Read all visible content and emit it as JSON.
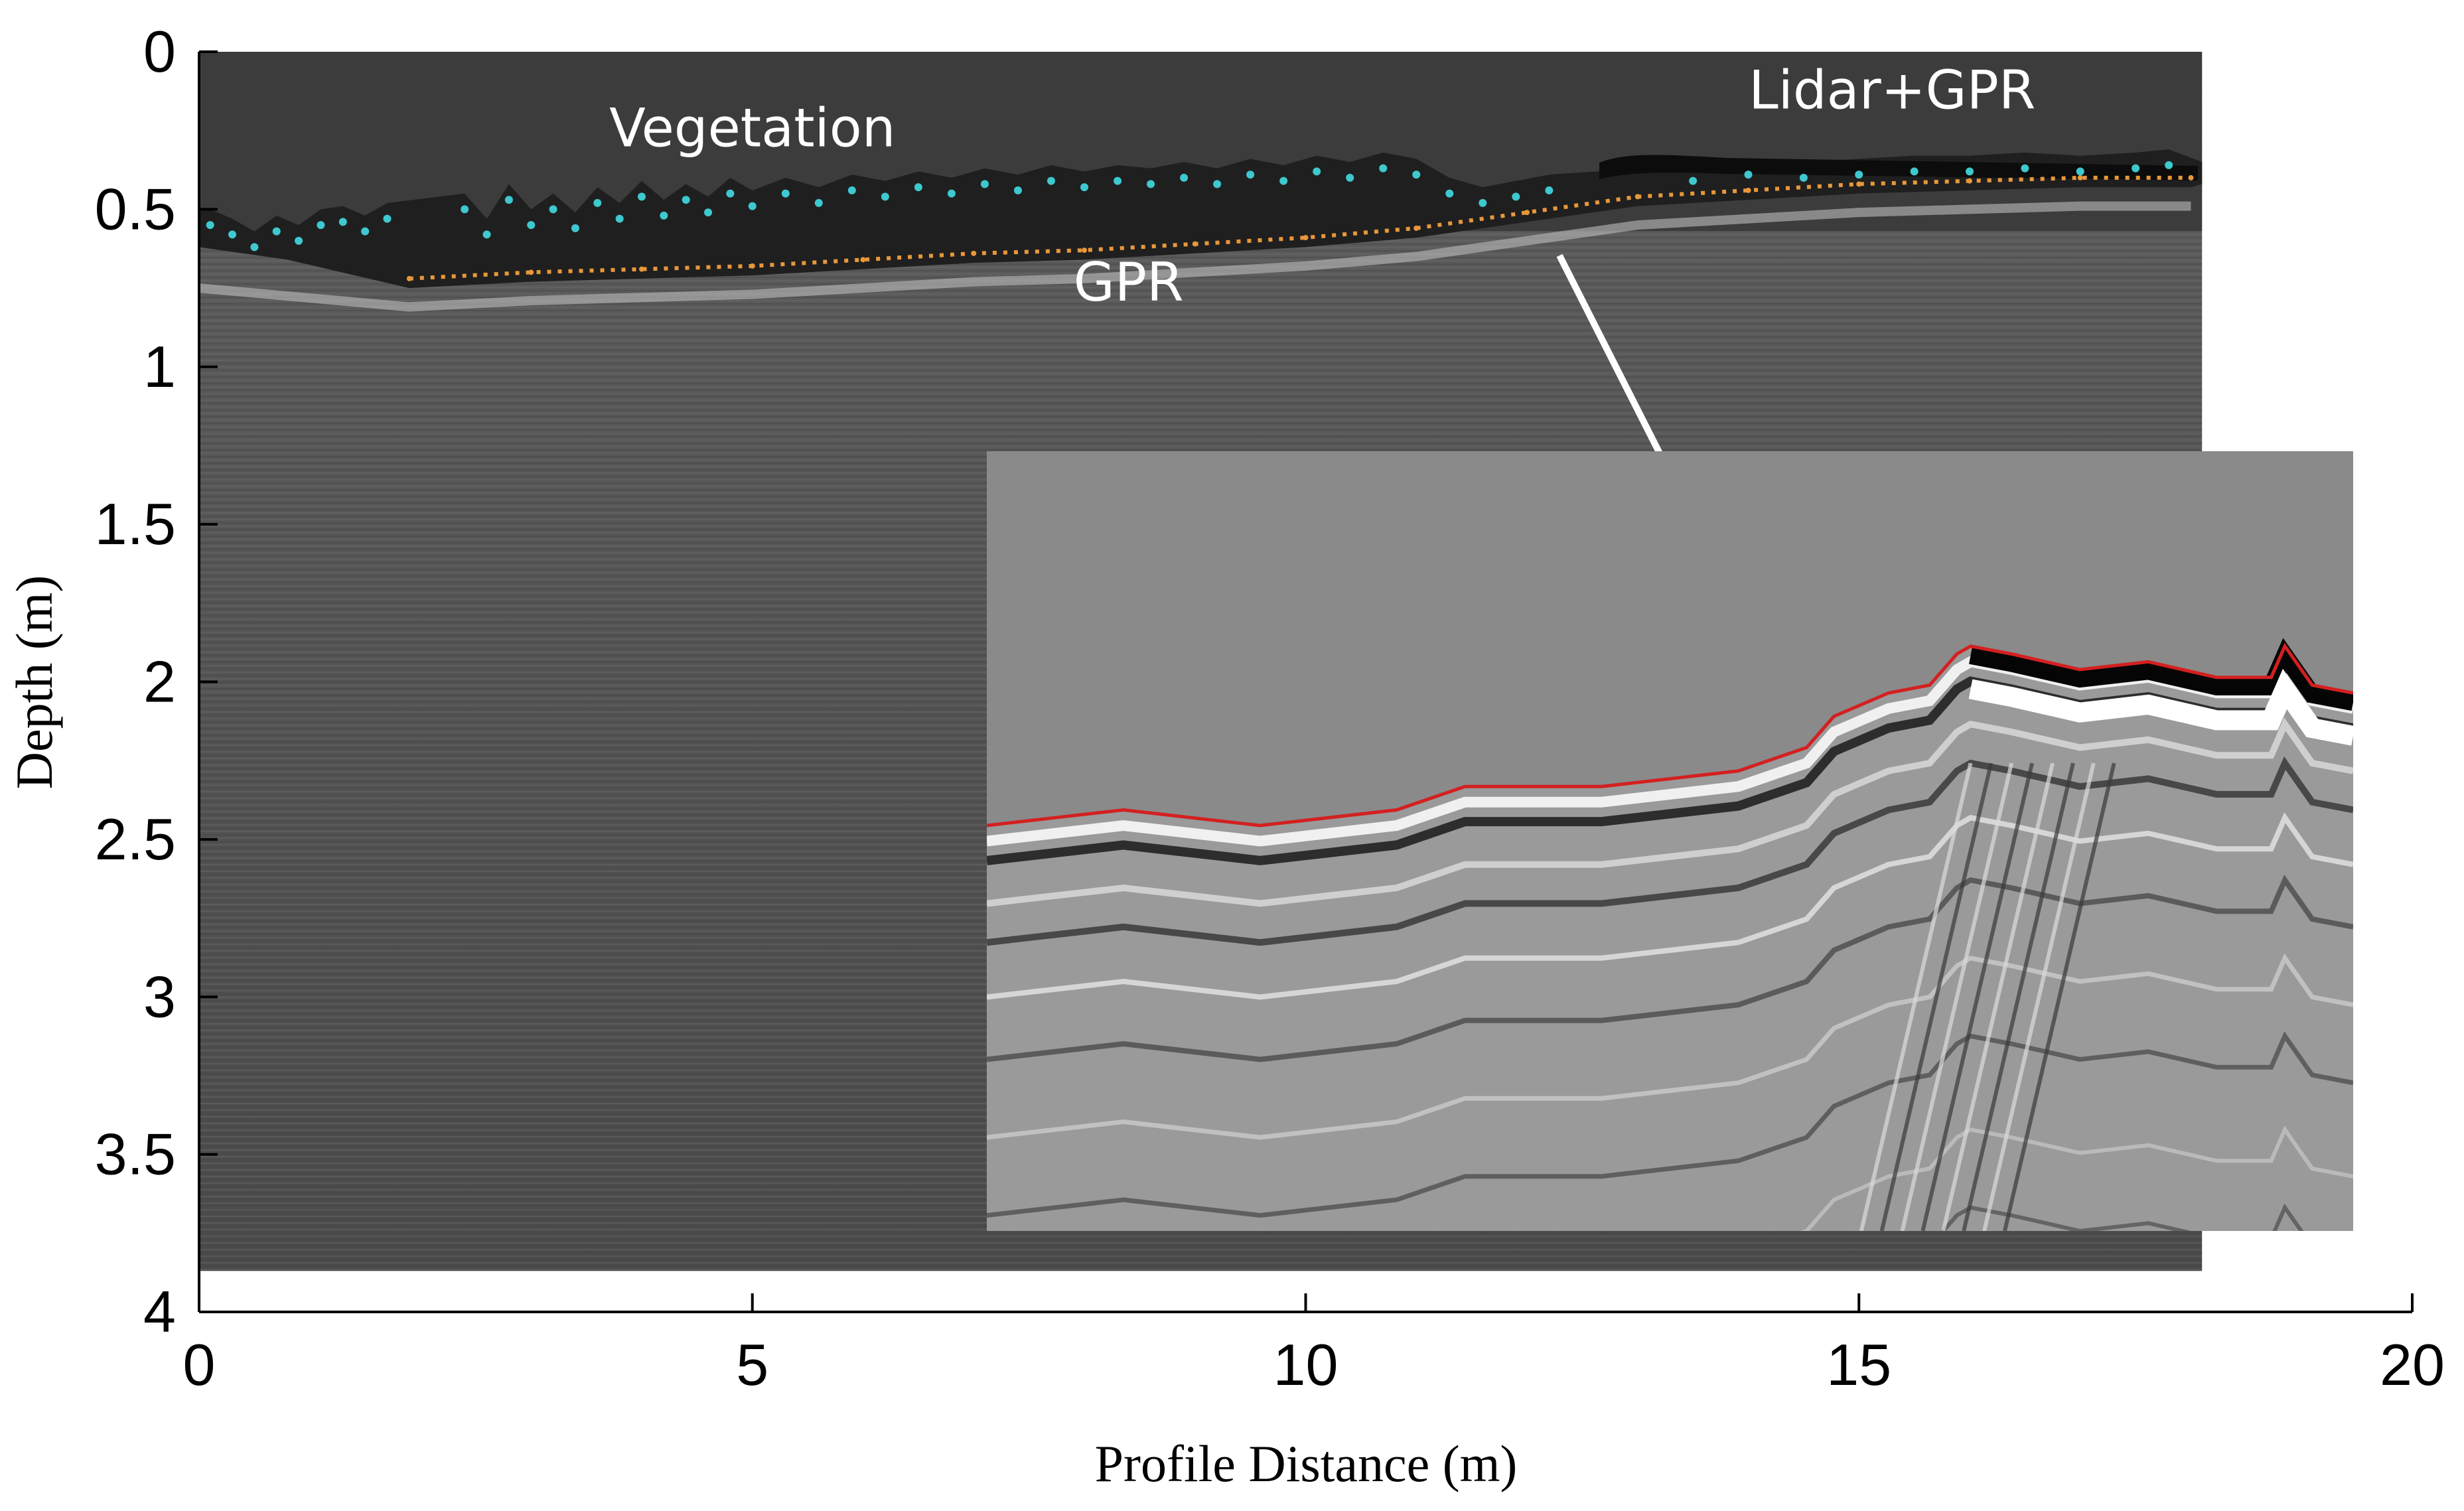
{
  "chart_data": {
    "type": "heatmap",
    "xlabel": "Profile Distance (m)",
    "ylabel": "Depth (m)",
    "xlim": [
      0,
      20
    ],
    "ylim": [
      0,
      4
    ],
    "x_ticks": [
      "0",
      "5",
      "10",
      "15",
      "20"
    ],
    "y_ticks": [
      "0",
      "0.5",
      "1",
      "1.5",
      "2",
      "2.5",
      "3",
      "3.5",
      "4"
    ],
    "data_extent_x": [
      0,
      18.1
    ],
    "data_extent_y": [
      0,
      3.87
    ],
    "colormap": "grayscale",
    "annotations": [
      {
        "text": "Vegetation",
        "x": 5.0,
        "y": 0.3
      },
      {
        "text": "Lidar+GPR",
        "x": 15.3,
        "y": 0.18
      },
      {
        "text": "GPR",
        "x": 8.4,
        "y": 0.79
      }
    ],
    "series": [
      {
        "kind": "surface-line",
        "color": "#e8973a",
        "style": "dotted",
        "points": [
          [
            1.9,
            0.72
          ],
          [
            3,
            0.7
          ],
          [
            4,
            0.69
          ],
          [
            5,
            0.68
          ],
          [
            6,
            0.66
          ],
          [
            7,
            0.64
          ],
          [
            8,
            0.63
          ],
          [
            9,
            0.61
          ],
          [
            10,
            0.59
          ],
          [
            11,
            0.56
          ],
          [
            12,
            0.51
          ],
          [
            13,
            0.46
          ],
          [
            14,
            0.44
          ],
          [
            15,
            0.42
          ],
          [
            16,
            0.41
          ],
          [
            17,
            0.4
          ],
          [
            18,
            0.4
          ]
        ]
      },
      {
        "kind": "scatter",
        "color": "#3ec8cf",
        "points": [
          [
            0.1,
            0.55
          ],
          [
            0.3,
            0.58
          ],
          [
            0.5,
            0.62
          ],
          [
            0.7,
            0.57
          ],
          [
            0.9,
            0.6
          ],
          [
            1.1,
            0.55
          ],
          [
            1.3,
            0.54
          ],
          [
            1.5,
            0.57
          ],
          [
            1.7,
            0.53
          ],
          [
            2.4,
            0.5
          ],
          [
            2.6,
            0.58
          ],
          [
            2.8,
            0.47
          ],
          [
            3.0,
            0.55
          ],
          [
            3.2,
            0.5
          ],
          [
            3.4,
            0.56
          ],
          [
            3.6,
            0.48
          ],
          [
            3.8,
            0.53
          ],
          [
            4.0,
            0.46
          ],
          [
            4.2,
            0.52
          ],
          [
            4.4,
            0.47
          ],
          [
            4.6,
            0.51
          ],
          [
            4.8,
            0.45
          ],
          [
            5.0,
            0.49
          ],
          [
            5.3,
            0.45
          ],
          [
            5.6,
            0.48
          ],
          [
            5.9,
            0.44
          ],
          [
            6.2,
            0.46
          ],
          [
            6.5,
            0.43
          ],
          [
            6.8,
            0.45
          ],
          [
            7.1,
            0.42
          ],
          [
            7.4,
            0.44
          ],
          [
            7.7,
            0.41
          ],
          [
            8.0,
            0.43
          ],
          [
            8.3,
            0.41
          ],
          [
            8.6,
            0.42
          ],
          [
            8.9,
            0.4
          ],
          [
            9.2,
            0.42
          ],
          [
            9.5,
            0.39
          ],
          [
            9.8,
            0.41
          ],
          [
            10.1,
            0.38
          ],
          [
            10.4,
            0.4
          ],
          [
            10.7,
            0.37
          ],
          [
            11.0,
            0.39
          ],
          [
            11.3,
            0.45
          ],
          [
            11.6,
            0.48
          ],
          [
            11.9,
            0.46
          ],
          [
            12.2,
            0.44
          ],
          [
            13.5,
            0.41
          ],
          [
            14.0,
            0.39
          ],
          [
            14.5,
            0.4
          ],
          [
            15.0,
            0.39
          ],
          [
            15.5,
            0.38
          ],
          [
            16.0,
            0.38
          ],
          [
            16.5,
            0.37
          ],
          [
            17.0,
            0.38
          ],
          [
            17.5,
            0.37
          ],
          [
            17.8,
            0.36
          ]
        ]
      }
    ],
    "inset": {
      "kind": "zoomed-radargram",
      "trace_color": "#d42020",
      "trace": [
        [
          0,
          0.48
        ],
        [
          0.1,
          0.46
        ],
        [
          0.2,
          0.48
        ],
        [
          0.3,
          0.46
        ],
        [
          0.35,
          0.43
        ],
        [
          0.45,
          0.43
        ],
        [
          0.55,
          0.41
        ],
        [
          0.6,
          0.38
        ],
        [
          0.62,
          0.34
        ],
        [
          0.66,
          0.31
        ],
        [
          0.69,
          0.3
        ],
        [
          0.71,
          0.26
        ],
        [
          0.72,
          0.25
        ],
        [
          0.75,
          0.26
        ],
        [
          0.8,
          0.28
        ],
        [
          0.85,
          0.27
        ],
        [
          0.9,
          0.29
        ],
        [
          0.94,
          0.29
        ],
        [
          0.95,
          0.25
        ],
        [
          0.97,
          0.3
        ],
        [
          1.0,
          0.31
        ]
      ]
    }
  }
}
